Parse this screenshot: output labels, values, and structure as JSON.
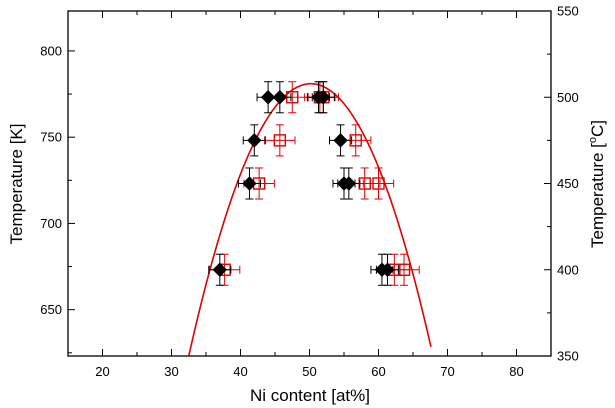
{
  "chart_data": {
    "type": "scatter",
    "title": "",
    "xlabel": "Ni content [at%]",
    "ylabel_left": "Temperature [K]",
    "ylabel_right_prefix": "Temperature [",
    "ylabel_right_sup": "o",
    "ylabel_right_suffix": "C]",
    "xlim": [
      15,
      85
    ],
    "ylim_left": [
      623.15,
      823.15
    ],
    "ylim_right": [
      350,
      550
    ],
    "xticks": [
      20,
      30,
      40,
      50,
      60,
      70,
      80
    ],
    "yticks_left": [
      650,
      700,
      750,
      800
    ],
    "yticks_right": [
      350,
      400,
      450,
      500,
      550
    ],
    "grid": false,
    "legend": "none",
    "colors": {
      "black_series": "#000000",
      "red_series": "#e00000",
      "fit_curve": "#e00000"
    },
    "series": [
      {
        "marker": "filled-diamond",
        "color": "#000000",
        "x": [
          44.0,
          45.7,
          51.3,
          52.0,
          42.0,
          54.5,
          41.3,
          55.0,
          55.7,
          37.0,
          60.5,
          61.3
        ],
        "y": [
          773.15,
          773.15,
          773.15,
          773.15,
          748.15,
          748.15,
          723.15,
          723.15,
          723.15,
          673.15,
          673.15,
          673.15
        ],
        "x_error": [
          1.6,
          1.6,
          1.6,
          1.6,
          1.6,
          1.6,
          1.6,
          1.6,
          1.6,
          1.6,
          1.6,
          1.6
        ],
        "y_error": [
          9,
          9,
          9,
          9,
          9,
          9,
          9,
          9,
          9,
          9,
          9,
          9
        ]
      },
      {
        "marker": "open-square",
        "color": "#e00000",
        "x": [
          47.5,
          51.5,
          52.0,
          45.7,
          56.7,
          42.7,
          58.0,
          60.0,
          37.7,
          62.3,
          63.7
        ],
        "y": [
          773.15,
          773.15,
          773.15,
          748.15,
          748.15,
          723.15,
          723.15,
          723.15,
          673.15,
          673.15,
          673.15
        ],
        "x_error": [
          2.2,
          2.2,
          2.2,
          2.2,
          2.2,
          2.2,
          2.2,
          2.2,
          2.2,
          2.2,
          2.2
        ],
        "y_error": [
          9,
          9,
          9,
          9,
          9,
          9,
          9,
          9,
          9,
          9,
          9
        ]
      }
    ],
    "fit_curve": {
      "type": "parabola",
      "color": "#e00000",
      "vertex_x": 50.2,
      "vertex_y": 781,
      "x_range": [
        32.5,
        67.6
      ],
      "y_at_ends": 623.15
    }
  }
}
